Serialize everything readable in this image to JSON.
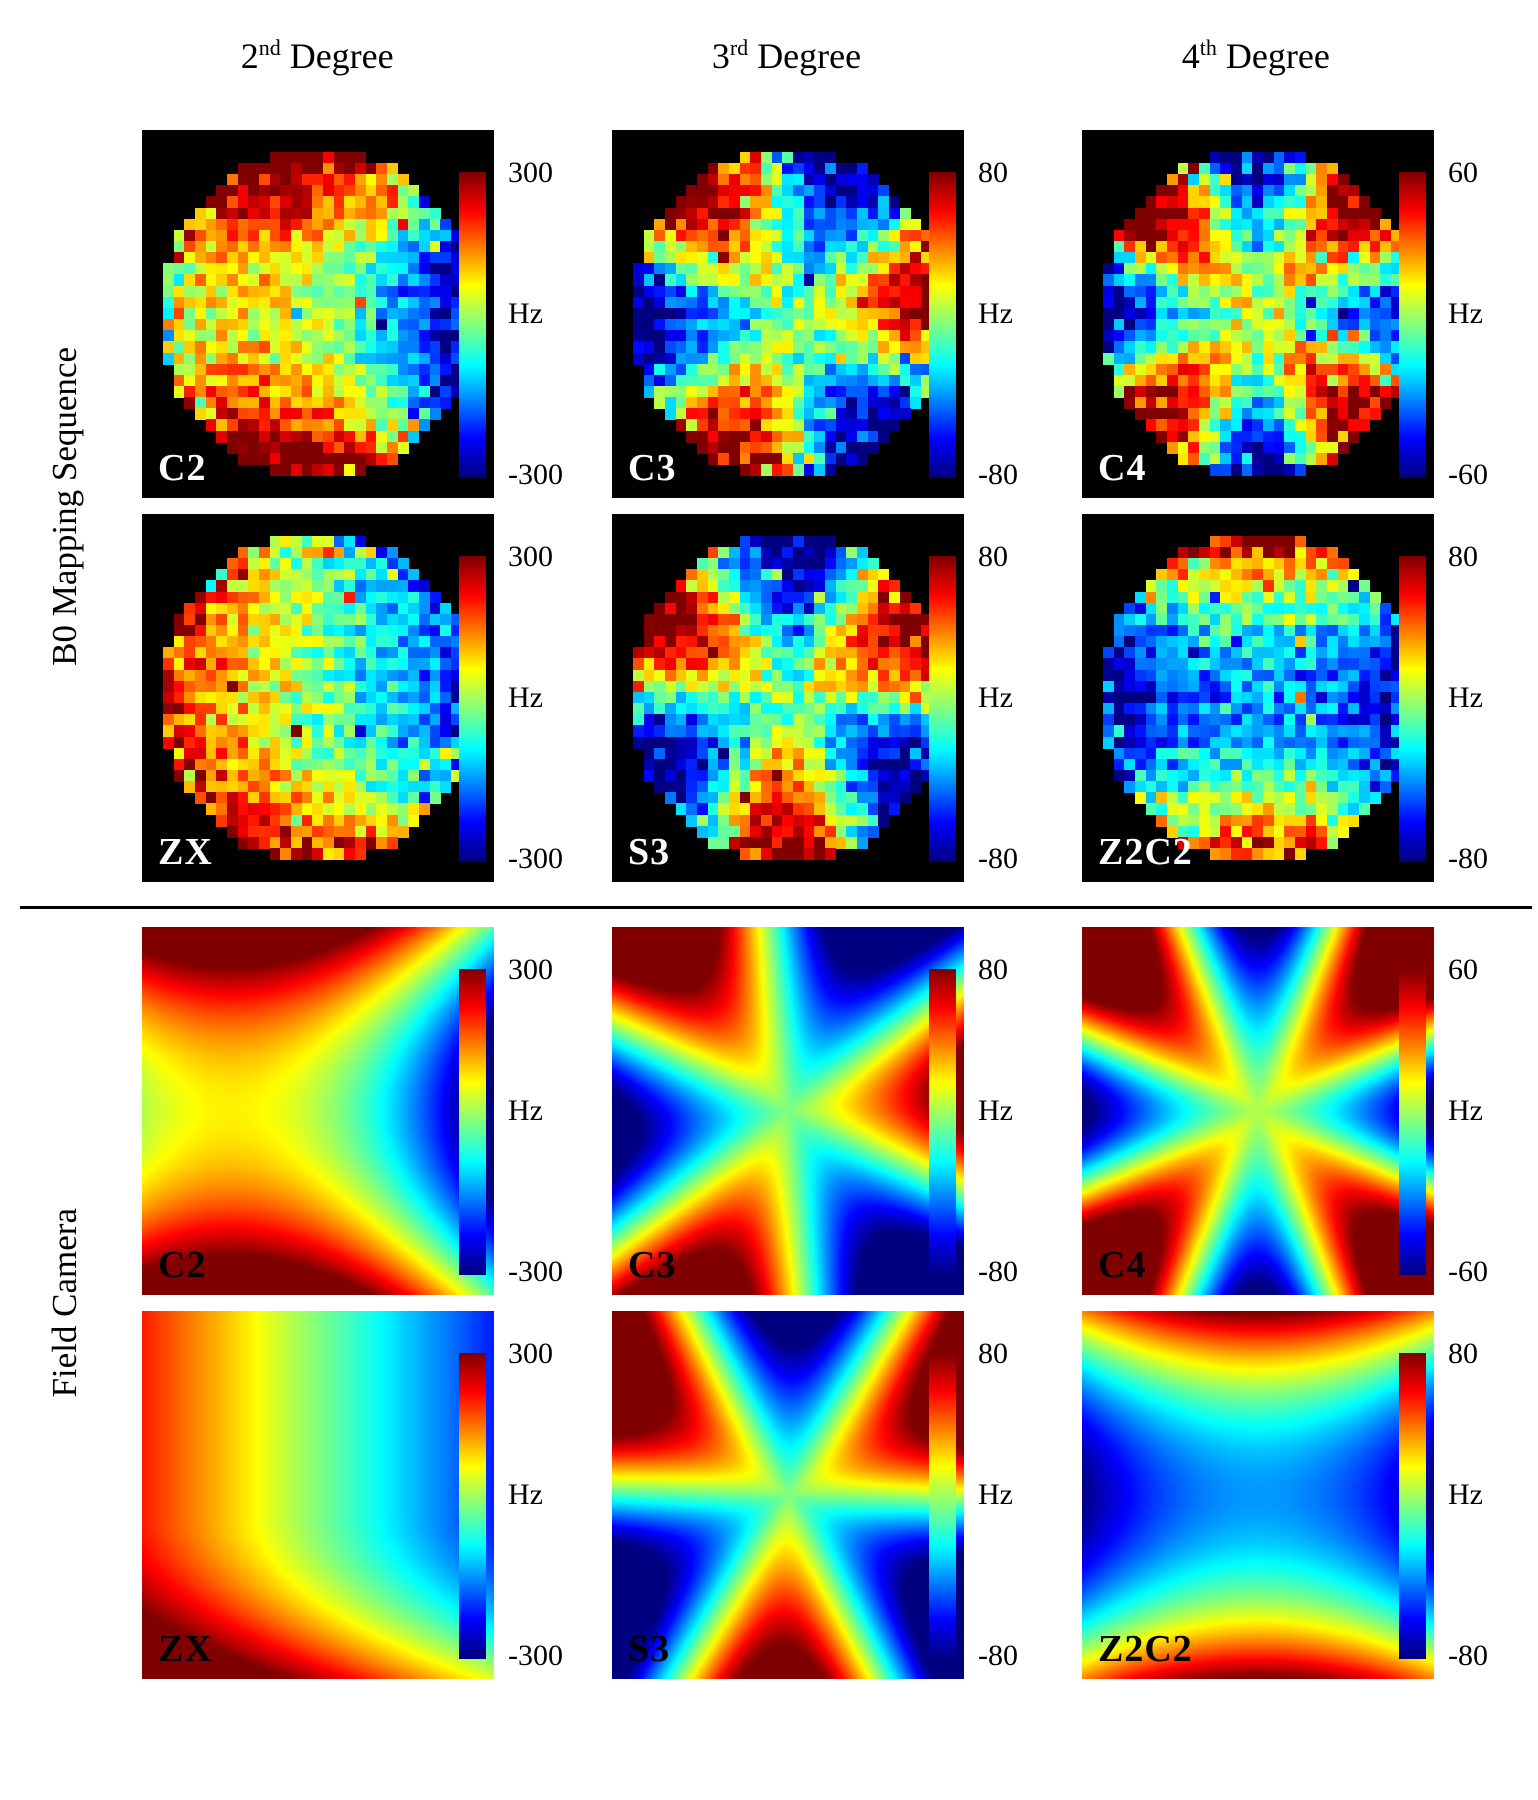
{
  "headers": [
    {
      "num": "2",
      "sup": "nd",
      "rest": " Degree"
    },
    {
      "num": "3",
      "sup": "rd",
      "rest": " Degree"
    },
    {
      "num": "4",
      "sup": "th",
      "rest": " Degree"
    }
  ],
  "groups": [
    {
      "label": "B0 Mapping Sequence"
    },
    {
      "label": "Field Camera"
    }
  ],
  "panels": [
    {
      "group": "B0 Mapping Sequence",
      "label": "C2",
      "colorbar_max": "300",
      "unit": "Hz",
      "colorbar_min": "-300",
      "pattern": "c2",
      "style": "measured"
    },
    {
      "group": "B0 Mapping Sequence",
      "label": "C3",
      "colorbar_max": "80",
      "unit": "Hz",
      "colorbar_min": "-80",
      "pattern": "c3",
      "style": "measured"
    },
    {
      "group": "B0 Mapping Sequence",
      "label": "C4",
      "colorbar_max": "60",
      "unit": "Hz",
      "colorbar_min": "-60",
      "pattern": "c4",
      "style": "measured"
    },
    {
      "group": "B0 Mapping Sequence",
      "label": "ZX",
      "colorbar_max": "300",
      "unit": "Hz",
      "colorbar_min": "-300",
      "pattern": "zx",
      "style": "measured"
    },
    {
      "group": "B0 Mapping Sequence",
      "label": "S3",
      "colorbar_max": "80",
      "unit": "Hz",
      "colorbar_min": "-80",
      "pattern": "s3",
      "style": "measured"
    },
    {
      "group": "B0 Mapping Sequence",
      "label": "Z2C2",
      "colorbar_max": "80",
      "unit": "Hz",
      "colorbar_min": "-80",
      "pattern": "z2c2",
      "style": "measured"
    },
    {
      "group": "Field Camera",
      "label": "C2",
      "colorbar_max": "300",
      "unit": "Hz",
      "colorbar_min": "-300",
      "pattern": "c2",
      "style": "simulated"
    },
    {
      "group": "Field Camera",
      "label": "C3",
      "colorbar_max": "80",
      "unit": "Hz",
      "colorbar_min": "-80",
      "pattern": "c3",
      "style": "simulated"
    },
    {
      "group": "Field Camera",
      "label": "C4",
      "colorbar_max": "60",
      "unit": "Hz",
      "colorbar_min": "-60",
      "pattern": "c4",
      "style": "simulated"
    },
    {
      "group": "Field Camera",
      "label": "ZX",
      "colorbar_max": "300",
      "unit": "Hz",
      "colorbar_min": "-300",
      "pattern": "zx",
      "style": "simulated"
    },
    {
      "group": "Field Camera",
      "label": "S3",
      "colorbar_max": "80",
      "unit": "Hz",
      "colorbar_min": "-80",
      "pattern": "s3",
      "style": "simulated"
    },
    {
      "group": "Field Camera",
      "label": "Z2C2",
      "colorbar_max": "80",
      "unit": "Hz",
      "colorbar_min": "-80",
      "pattern": "z2c2",
      "style": "simulated"
    }
  ],
  "chart_data": {
    "type": "heatmap",
    "title": "",
    "colormap": "jet",
    "columns": [
      "2nd Degree",
      "3rd Degree",
      "4th Degree"
    ],
    "row_groups": [
      "B0 Mapping Sequence",
      "Field Camera"
    ],
    "legend_position": "right-of-each-panel",
    "panels": [
      {
        "row_group": "B0 Mapping Sequence",
        "column": "2nd Degree",
        "shim_term": "C2",
        "colorbar_range_hz": [
          -300,
          300
        ],
        "appearance": "noisy circular phantom map on black, red top/bottom lobes, blue right/left, green-yellow center"
      },
      {
        "row_group": "B0 Mapping Sequence",
        "column": "3rd Degree",
        "shim_term": "C3",
        "colorbar_range_hz": [
          -80,
          80
        ],
        "appearance": "noisy circular phantom map, three-lobed cos(3theta) pattern, red right and lower-left, blue top and lower-right"
      },
      {
        "row_group": "B0 Mapping Sequence",
        "column": "4th Degree",
        "shim_term": "C4",
        "colorbar_range_hz": [
          -60,
          60
        ],
        "appearance": "noisy circular phantom map, four red diagonal corner lobes, blue cross along axes, cyan-green center"
      },
      {
        "row_group": "B0 Mapping Sequence",
        "column": "2nd Degree",
        "shim_term": "ZX",
        "colorbar_range_hz": [
          -300,
          300
        ],
        "appearance": "noisy circular phantom map, left-to-right gradient red-orange-yellow-green-cyan-blue"
      },
      {
        "row_group": "B0 Mapping Sequence",
        "column": "3rd Degree",
        "shim_term": "S3",
        "colorbar_range_hz": [
          -80,
          80
        ],
        "appearance": "noisy circular phantom map, sin(3theta) pattern, red bottom lobe and upper corners, blue top center"
      },
      {
        "row_group": "B0 Mapping Sequence",
        "column": "4th Degree",
        "shim_term": "Z2C2",
        "colorbar_range_hz": [
          -80,
          80
        ],
        "appearance": "noisy circular phantom map, red top and bottom arcs, blue-cyan center band"
      },
      {
        "row_group": "Field Camera",
        "column": "2nd Degree",
        "shim_term": "C2",
        "colorbar_range_hz": [
          -300,
          300
        ],
        "appearance": "smooth saddle field, red top/bottom bands, dark blue right edge, yellow X diagonals"
      },
      {
        "row_group": "Field Camera",
        "column": "3rd Degree",
        "shim_term": "C3",
        "colorbar_range_hz": [
          -80,
          80
        ],
        "appearance": "smooth three-lobed field, red upper-left corner and right band, blue top center and lower right"
      },
      {
        "row_group": "Field Camera",
        "column": "4th Degree",
        "shim_term": "C4",
        "colorbar_range_hz": [
          -60,
          60
        ],
        "appearance": "smooth four-lobed field, red corners, blue mid-edges, cyan-green center"
      },
      {
        "row_group": "Field Camera",
        "column": "2nd Degree",
        "shim_term": "ZX",
        "colorbar_range_hz": [
          -300,
          300
        ],
        "appearance": "smooth field, orange left half, blue right half, deep red blob at bottom center"
      },
      {
        "row_group": "Field Camera",
        "column": "3rd Degree",
        "shim_term": "S3",
        "colorbar_range_hz": [
          -80,
          80
        ],
        "appearance": "smooth field, large red bottom lobe, orange upper corners, blue top center"
      },
      {
        "row_group": "Field Camera",
        "column": "4th Degree",
        "shim_term": "Z2C2",
        "colorbar_range_hz": [
          -80,
          80
        ],
        "appearance": "smooth field, red top and bottom bands, cyan center, blue side edges"
      }
    ]
  },
  "colors": {
    "jet_max": "#7f0000",
    "jet_mid": "#7fff7f",
    "jet_min": "#00007f",
    "background": "#ffffff",
    "phantom_background": "#000000"
  }
}
